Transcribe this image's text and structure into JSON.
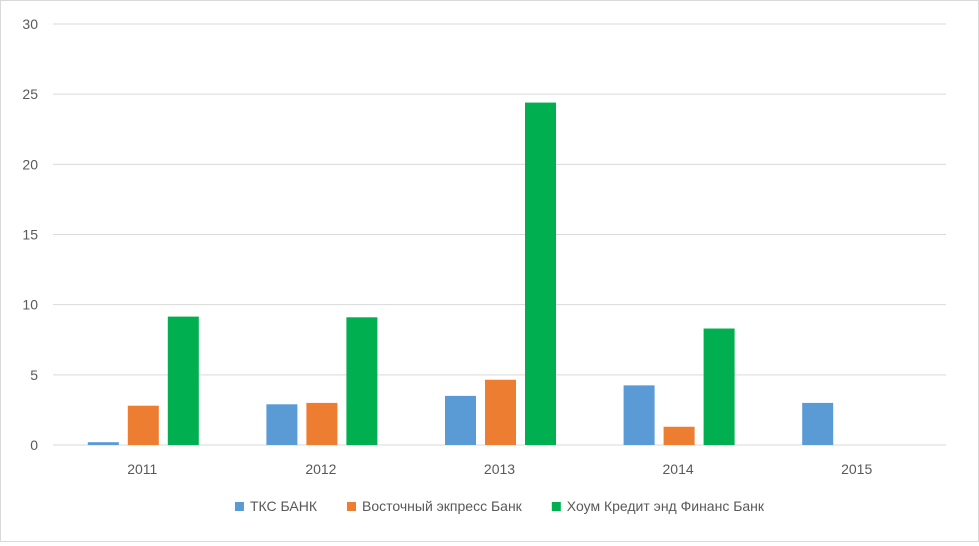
{
  "chart_data": {
    "type": "bar",
    "title": "",
    "xlabel": "",
    "ylabel": "",
    "categories": [
      "2011",
      "2012",
      "2013",
      "2014",
      "2015"
    ],
    "ylim": [
      0,
      30
    ],
    "yticks": [
      0,
      5,
      10,
      15,
      20,
      25,
      30
    ],
    "grid": true,
    "legend_position": "bottom",
    "series": [
      {
        "name": "ТКС БАНК",
        "color": "#5b9bd5",
        "values": [
          0.2,
          2.9,
          3.5,
          4.25,
          3.0
        ]
      },
      {
        "name": "Восточный экпресс Банк",
        "color": "#ed7d31",
        "values": [
          2.8,
          3.0,
          4.65,
          1.3,
          null
        ]
      },
      {
        "name": "Хоум Кредит энд Финанс Банк",
        "color": "#00b050",
        "values": [
          9.15,
          9.1,
          24.4,
          8.3,
          null
        ]
      }
    ]
  }
}
